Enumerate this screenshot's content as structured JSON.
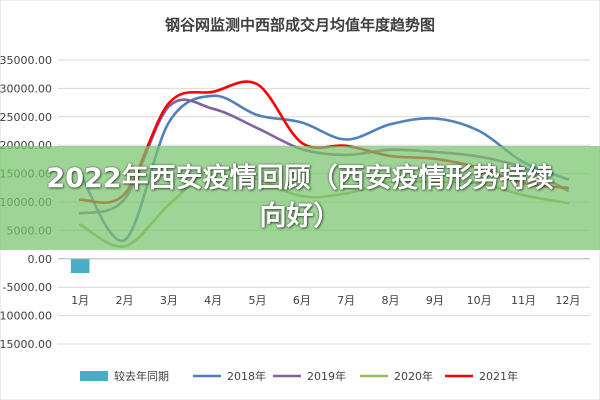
{
  "chart_data": {
    "type": "line",
    "title": "钢谷网监测中西部成交月均值年度趋势图",
    "categories": [
      "1月",
      "2月",
      "3月",
      "4月",
      "5月",
      "6月",
      "7月",
      "8月",
      "9月",
      "10月",
      "11月",
      "12月"
    ],
    "y_ticks": [
      "-15000.00",
      "-10000.00",
      "-5000.00",
      "0.00",
      "5000.00",
      "10000.00",
      "15000.00",
      "20000.00",
      "25000.00",
      "30000.00",
      "35000.00"
    ],
    "ylim": [
      -15000,
      35000
    ],
    "grid": true,
    "legend_position": "bottom",
    "bar_series": {
      "name": "较去年同期",
      "color": "#4bacc6",
      "values": [
        -2500,
        null,
        null,
        null,
        null,
        null,
        null,
        null,
        null,
        null,
        null,
        null
      ]
    },
    "series": [
      {
        "name": "2018年",
        "color": "#4f81bd",
        "values": [
          15000,
          3300,
          24000,
          28700,
          25300,
          24000,
          21000,
          23700,
          24700,
          22500,
          17000,
          14000
        ]
      },
      {
        "name": "2019年",
        "color": "#8064a2",
        "values": [
          8000,
          10500,
          26800,
          26400,
          23000,
          19300,
          18300,
          19200,
          18800,
          18000,
          16000,
          12000
        ]
      },
      {
        "name": "2020年",
        "color": "#9bbb59",
        "values": [
          6000,
          2200,
          9500,
          15800,
          14000,
          11000,
          11500,
          13500,
          13500,
          13300,
          11200,
          9800
        ]
      },
      {
        "name": "2021年",
        "color": "#ff0000",
        "values": [
          10400,
          11400,
          27400,
          29400,
          30700,
          20400,
          19900,
          18100,
          17600,
          16000,
          13300,
          12500
        ]
      }
    ]
  },
  "overlay": {
    "text": "2022年西安疫情回顾（西安疫情形势持续向好）"
  }
}
